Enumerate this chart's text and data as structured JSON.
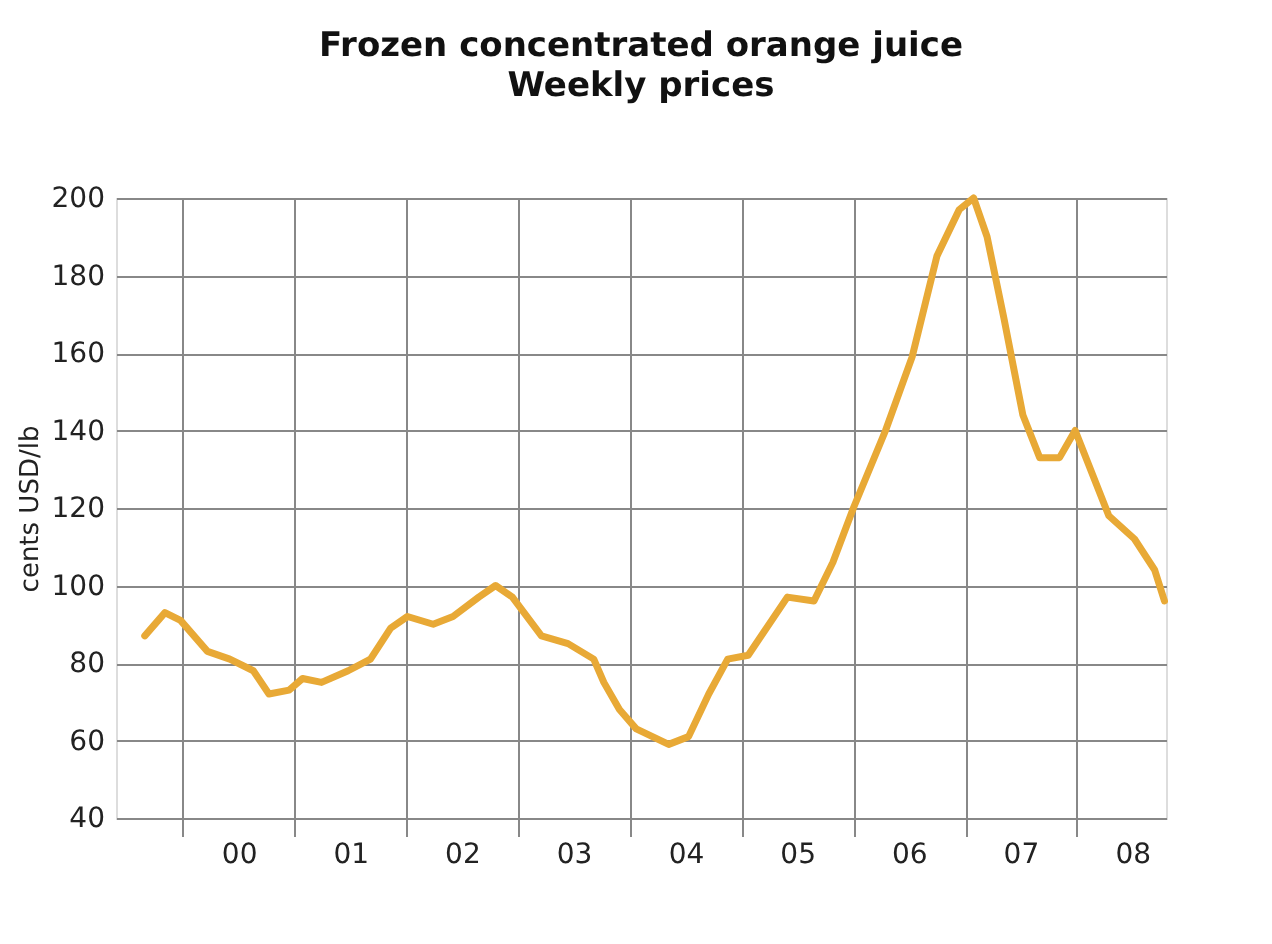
{
  "chart_data": {
    "type": "line",
    "title": "Frozen concentrated orange juice",
    "subtitle": "Weekly prices",
    "ylabel": "cents USD/lb",
    "x": [
      "1999-08-29",
      "1999-11-03",
      "1999-12-24",
      "2000-03-21",
      "2000-06-02",
      "2000-08-18",
      "2000-10-08",
      "2000-12-13",
      "2001-01-26",
      "2001-03-29",
      "2001-06-24",
      "2001-09-05",
      "2001-11-10",
      "2002-01-04",
      "2002-03-29",
      "2002-06-02",
      "2002-08-25",
      "2002-10-19",
      "2002-12-13",
      "2003-03-18",
      "2003-06-13",
      "2003-09-05",
      "2003-10-08",
      "2003-11-28",
      "2004-01-22",
      "2004-05-07",
      "2004-07-11",
      "2004-09-15",
      "2004-11-16",
      "2005-01-22",
      "2005-05-30",
      "2005-08-25",
      "2005-10-26",
      "2006-01-01",
      "2006-04-16",
      "2006-07-12",
      "2006-10-01",
      "2006-12-13",
      "2007-01-29",
      "2007-03-14",
      "2007-05-08",
      "2007-07-09",
      "2007-09-02",
      "2007-11-06",
      "2007-12-27",
      "2008-04-15",
      "2008-07-08",
      "2008-09-12",
      "2008-10-14"
    ],
    "series": [
      {
        "color": "#e8a936",
        "values": [
          87,
          93,
          91,
          83,
          81,
          78,
          72,
          73,
          76,
          75,
          78,
          81,
          89,
          92,
          90,
          92,
          97,
          100,
          97,
          87,
          85,
          81,
          75,
          68,
          63,
          59,
          61,
          72,
          81,
          82,
          97,
          96,
          106,
          120,
          140,
          159,
          185,
          197,
          200,
          190,
          169,
          144,
          133,
          133,
          140,
          118,
          112,
          104,
          96
        ]
      }
    ],
    "xlim": [
      "1999-05-27",
      "2008-10-19"
    ],
    "xticks": [
      {
        "value": "2000-01-01",
        "label": null
      },
      {
        "value": "2000-07-01",
        "label": "00"
      },
      {
        "value": "2001-01-01",
        "label": null
      },
      {
        "value": "2001-07-01",
        "label": "01"
      },
      {
        "value": "2002-01-01",
        "label": null
      },
      {
        "value": "2002-07-01",
        "label": "02"
      },
      {
        "value": "2003-01-01",
        "label": null
      },
      {
        "value": "2003-07-01",
        "label": "03"
      },
      {
        "value": "2004-01-01",
        "label": null
      },
      {
        "value": "2004-07-01",
        "label": "04"
      },
      {
        "value": "2005-01-01",
        "label": null
      },
      {
        "value": "2005-07-01",
        "label": "05"
      },
      {
        "value": "2006-01-01",
        "label": null
      },
      {
        "value": "2006-07-01",
        "label": "06"
      },
      {
        "value": "2007-01-01",
        "label": null
      },
      {
        "value": "2007-07-01",
        "label": "07"
      },
      {
        "value": "2008-01-01",
        "label": null
      },
      {
        "value": "2008-07-01",
        "label": "08"
      }
    ],
    "ylim": [
      40,
      200
    ],
    "yticks": [
      40,
      60,
      80,
      100,
      120,
      140,
      160,
      180,
      200
    ],
    "grid": true,
    "line_style": "solid",
    "marker": "none"
  }
}
